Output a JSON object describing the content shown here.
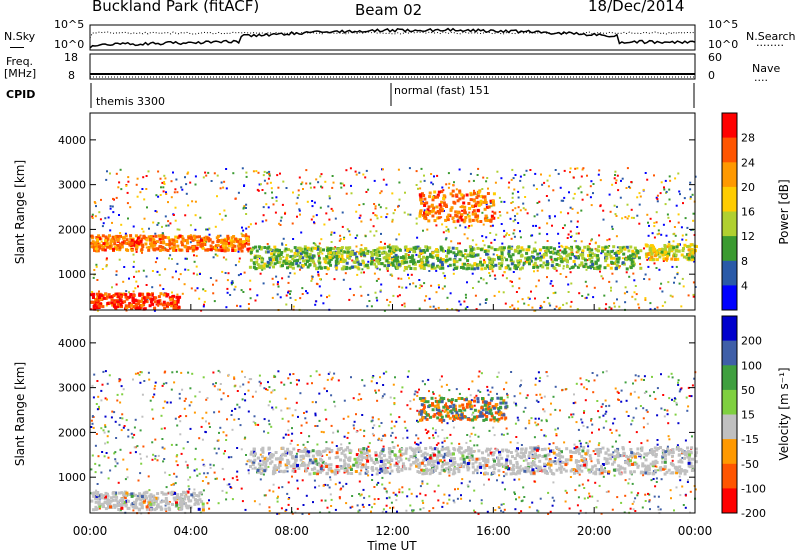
{
  "header": {
    "station": "Buckland Park (fitACF)",
    "beam": "Beam 02",
    "date": "18/Dec/2014"
  },
  "noise_panel": {
    "left_label": "N.Sky",
    "right_label": "N.Search",
    "left_ticks": [
      "10^5",
      "10^0"
    ],
    "right_ticks": [
      "10^5",
      "10^0"
    ],
    "right_legend": "........"
  },
  "freq_panel": {
    "left_label_line1": "Freq.",
    "left_label_line2": "[MHz]",
    "left_ticks": [
      "18",
      "8"
    ],
    "right_label": "Nave",
    "right_ticks": [
      "60",
      "0"
    ],
    "right_legend": "...."
  },
  "cpid_panel": {
    "label": "CPID",
    "modes": [
      {
        "name": "themis 3300",
        "start": "00:00"
      },
      {
        "name": "normal (fast) 151",
        "start": "12:00"
      }
    ]
  },
  "x_axis": {
    "label": "Time UT",
    "ticks": [
      "00:00",
      "04:00",
      "08:00",
      "12:00",
      "16:00",
      "20:00",
      "00:00"
    ]
  },
  "chart_data": [
    {
      "type": "heatmap",
      "name": "power",
      "xlabel": "Time UT",
      "ylabel": "Slant Range [km]",
      "ylim": [
        200,
        4600
      ],
      "yticks": [
        "1000",
        "2000",
        "3000",
        "4000"
      ],
      "colorbar": {
        "label": "Power [dB]",
        "ticks": [
          "28",
          "24",
          "20",
          "16",
          "12",
          "8",
          "4"
        ],
        "colors": [
          "#ff0000",
          "#ff5500",
          "#ff9900",
          "#ffcc00",
          "#b0d030",
          "#3a9a30",
          "#2a5aa8",
          "#0000ff"
        ]
      },
      "bands": [
        {
          "t0": 0.0,
          "t1": 6.3,
          "r0": 1550,
          "r1": 1900,
          "level": 24
        },
        {
          "t0": 0.0,
          "t1": 3.5,
          "r0": 250,
          "r1": 600,
          "level": 28
        },
        {
          "t0": 6.3,
          "t1": 21.8,
          "r0": 1150,
          "r1": 1650,
          "level": 12
        },
        {
          "t0": 13.0,
          "t1": 16.0,
          "r0": 2200,
          "r1": 2900,
          "level": 24
        },
        {
          "t0": 22.0,
          "t1": 24.0,
          "r0": 1350,
          "r1": 1700,
          "level": 16
        }
      ]
    },
    {
      "type": "heatmap",
      "name": "velocity",
      "xlabel": "Time UT",
      "ylabel": "Slant Range [km]",
      "ylim": [
        200,
        4600
      ],
      "yticks": [
        "1000",
        "2000",
        "3000",
        "4000"
      ],
      "colorbar": {
        "label": "Velocity [m s⁻¹]",
        "ticks": [
          "200",
          "100",
          "50",
          "15",
          "-15",
          "-50",
          "-100",
          "-200"
        ],
        "colors": [
          "#0000cc",
          "#3f5fa8",
          "#3f9f3f",
          "#7fd040",
          "#c0c0c0",
          "#ff9900",
          "#ff5500",
          "#ff0000"
        ]
      },
      "bands": [
        {
          "t0": 6.3,
          "t1": 24.0,
          "r0": 1100,
          "r1": 1700,
          "level": 0
        },
        {
          "t0": 0.0,
          "t1": 4.5,
          "r0": 300,
          "r1": 700,
          "level": 0
        },
        {
          "t0": 13.0,
          "t1": 16.5,
          "r0": 2300,
          "r1": 2800,
          "level": 30
        }
      ]
    }
  ]
}
